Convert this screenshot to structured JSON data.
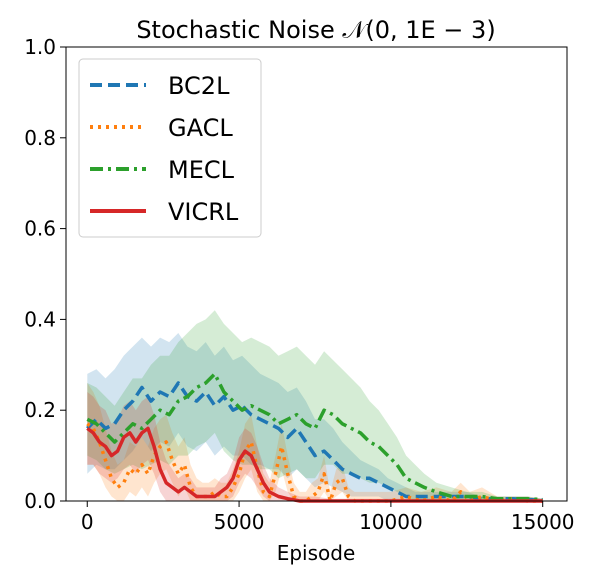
{
  "chart_data": {
    "type": "line",
    "title": "Stochastic Noise 𝒩(0, 1E − 3)",
    "xlabel": "Episode",
    "ylabel": "",
    "xlim": [
      -700,
      15800
    ],
    "ylim": [
      0,
      1.0
    ],
    "xticks": [
      0,
      5000,
      10000,
      15000
    ],
    "xtick_labels": [
      "0",
      "5000",
      "10000",
      "15000"
    ],
    "yticks": [
      0.0,
      0.2,
      0.4,
      0.6,
      0.8,
      1.0
    ],
    "ytick_labels": [
      "0.0",
      "0.2",
      "0.4",
      "0.6",
      "0.8",
      "1.0"
    ],
    "legend_position": "top-left",
    "series": [
      {
        "name": "BC2L",
        "color": "#1f77b4",
        "dash": "dashed",
        "x": [
          0,
          300,
          600,
          900,
          1200,
          1500,
          1800,
          2100,
          2400,
          2700,
          3000,
          3300,
          3600,
          3900,
          4200,
          4500,
          4800,
          5100,
          5400,
          5700,
          6000,
          6300,
          6600,
          6900,
          7200,
          7500,
          7800,
          8100,
          8400,
          8700,
          9000,
          9300,
          9600,
          9900,
          10200,
          10500,
          10800,
          11100,
          11500,
          12000,
          12500,
          13000,
          13500,
          14000,
          14500,
          15000
        ],
        "y": [
          0.16,
          0.18,
          0.16,
          0.17,
          0.2,
          0.22,
          0.25,
          0.22,
          0.24,
          0.23,
          0.26,
          0.23,
          0.22,
          0.24,
          0.21,
          0.23,
          0.2,
          0.21,
          0.19,
          0.18,
          0.17,
          0.16,
          0.14,
          0.16,
          0.13,
          0.1,
          0.11,
          0.09,
          0.07,
          0.06,
          0.05,
          0.05,
          0.04,
          0.03,
          0.02,
          0.01,
          0.01,
          0.01,
          0.01,
          0.01,
          0.01,
          0.005,
          0.005,
          0.005,
          0.003,
          0.002
        ],
        "band_upper": [
          0.28,
          0.29,
          0.27,
          0.29,
          0.32,
          0.34,
          0.36,
          0.34,
          0.36,
          0.35,
          0.37,
          0.34,
          0.33,
          0.35,
          0.32,
          0.34,
          0.31,
          0.32,
          0.3,
          0.28,
          0.27,
          0.26,
          0.24,
          0.25,
          0.22,
          0.18,
          0.18,
          0.16,
          0.13,
          0.11,
          0.09,
          0.08,
          0.07,
          0.05,
          0.04,
          0.03,
          0.02,
          0.02,
          0.02,
          0.02,
          0.02,
          0.01,
          0.01,
          0.01,
          0.01,
          0.005
        ],
        "band_lower": [
          0.06,
          0.08,
          0.07,
          0.07,
          0.09,
          0.11,
          0.14,
          0.11,
          0.13,
          0.12,
          0.15,
          0.12,
          0.11,
          0.13,
          0.1,
          0.12,
          0.1,
          0.1,
          0.08,
          0.08,
          0.07,
          0.07,
          0.05,
          0.07,
          0.05,
          0.03,
          0.04,
          0.03,
          0.02,
          0.01,
          0.01,
          0.01,
          0.01,
          0.0,
          0.0,
          0.0,
          0.0,
          0.0,
          0.0,
          0.0,
          0.0,
          0.0,
          0.0,
          0.0,
          0.0,
          0.0
        ]
      },
      {
        "name": "GACL",
        "color": "#ff7f0e",
        "dash": "dotted",
        "x": [
          0,
          200,
          400,
          600,
          800,
          1000,
          1200,
          1400,
          1600,
          1800,
          2000,
          2200,
          2400,
          2600,
          2800,
          3000,
          3200,
          3400,
          3600,
          3800,
          4000,
          4200,
          4400,
          4600,
          4800,
          5000,
          5200,
          5400,
          5600,
          5800,
          6000,
          6200,
          6400,
          6600,
          6800,
          7000,
          7200,
          7400,
          7600,
          7800,
          8000,
          8200,
          8400,
          8600,
          8800,
          9000,
          9500,
          10000,
          10500,
          11000,
          11500,
          12000,
          12300,
          12600,
          13000,
          13500,
          14000,
          14500,
          15000
        ],
        "y": [
          0.17,
          0.16,
          0.13,
          0.09,
          0.05,
          0.03,
          0.04,
          0.07,
          0.06,
          0.08,
          0.06,
          0.1,
          0.12,
          0.13,
          0.09,
          0.06,
          0.08,
          0.03,
          0.01,
          0.01,
          0.01,
          0.02,
          0.01,
          0.01,
          0.03,
          0.06,
          0.11,
          0.13,
          0.07,
          0.02,
          0.01,
          0.06,
          0.12,
          0.06,
          0.01,
          0.0,
          0.0,
          0.01,
          0.02,
          0.06,
          0.0,
          0.04,
          0.05,
          0.01,
          0.0,
          0.0,
          0.0,
          0.0,
          0.01,
          0.0,
          0.01,
          0.0,
          0.02,
          0.0,
          0.01,
          0.0,
          0.005,
          0.0,
          0.0
        ],
        "band_upper": [
          0.26,
          0.24,
          0.21,
          0.16,
          0.11,
          0.08,
          0.09,
          0.13,
          0.12,
          0.14,
          0.12,
          0.16,
          0.18,
          0.19,
          0.15,
          0.12,
          0.14,
          0.08,
          0.05,
          0.04,
          0.04,
          0.05,
          0.04,
          0.04,
          0.07,
          0.11,
          0.17,
          0.19,
          0.12,
          0.06,
          0.04,
          0.1,
          0.17,
          0.1,
          0.04,
          0.02,
          0.02,
          0.04,
          0.05,
          0.1,
          0.02,
          0.07,
          0.08,
          0.03,
          0.02,
          0.02,
          0.02,
          0.02,
          0.03,
          0.02,
          0.03,
          0.02,
          0.04,
          0.02,
          0.03,
          0.01,
          0.01,
          0.01,
          0.005
        ],
        "band_lower": [
          0.08,
          0.08,
          0.06,
          0.03,
          0.01,
          0.0,
          0.0,
          0.02,
          0.01,
          0.03,
          0.01,
          0.04,
          0.06,
          0.07,
          0.04,
          0.01,
          0.03,
          0.0,
          0.0,
          0.0,
          0.0,
          0.0,
          0.0,
          0.0,
          0.0,
          0.02,
          0.05,
          0.07,
          0.02,
          0.0,
          0.0,
          0.02,
          0.07,
          0.02,
          0.0,
          0.0,
          0.0,
          0.0,
          0.0,
          0.02,
          0.0,
          0.01,
          0.02,
          0.0,
          0.0,
          0.0,
          0.0,
          0.0,
          0.0,
          0.0,
          0.0,
          0.0,
          0.0,
          0.0,
          0.0,
          0.0,
          0.0,
          0.0,
          0.0
        ]
      },
      {
        "name": "MECL",
        "color": "#2ca02c",
        "dash": "dashdot",
        "x": [
          0,
          300,
          600,
          900,
          1200,
          1500,
          1800,
          2100,
          2400,
          2700,
          3000,
          3300,
          3600,
          3900,
          4200,
          4500,
          4800,
          5100,
          5400,
          5700,
          6000,
          6300,
          6600,
          6900,
          7200,
          7500,
          7800,
          8100,
          8400,
          8700,
          9000,
          9300,
          9600,
          9900,
          10200,
          10500,
          10800,
          11100,
          11500,
          12000,
          12500,
          13000,
          13500,
          14000,
          14500,
          15000
        ],
        "y": [
          0.18,
          0.17,
          0.15,
          0.13,
          0.15,
          0.17,
          0.16,
          0.18,
          0.2,
          0.19,
          0.22,
          0.23,
          0.25,
          0.26,
          0.28,
          0.24,
          0.22,
          0.2,
          0.21,
          0.2,
          0.19,
          0.17,
          0.18,
          0.19,
          0.17,
          0.16,
          0.2,
          0.19,
          0.17,
          0.16,
          0.15,
          0.13,
          0.12,
          0.1,
          0.08,
          0.05,
          0.04,
          0.03,
          0.02,
          0.01,
          0.01,
          0.01,
          0.005,
          0.005,
          0.005,
          0.003
        ],
        "band_upper": [
          0.26,
          0.25,
          0.23,
          0.21,
          0.24,
          0.27,
          0.27,
          0.3,
          0.32,
          0.32,
          0.35,
          0.37,
          0.39,
          0.4,
          0.42,
          0.39,
          0.37,
          0.35,
          0.36,
          0.35,
          0.34,
          0.32,
          0.33,
          0.34,
          0.32,
          0.3,
          0.33,
          0.31,
          0.29,
          0.27,
          0.25,
          0.22,
          0.2,
          0.17,
          0.14,
          0.1,
          0.08,
          0.06,
          0.04,
          0.03,
          0.02,
          0.02,
          0.01,
          0.01,
          0.01,
          0.005
        ],
        "band_lower": [
          0.1,
          0.09,
          0.07,
          0.06,
          0.07,
          0.08,
          0.07,
          0.08,
          0.09,
          0.08,
          0.1,
          0.1,
          0.12,
          0.13,
          0.15,
          0.11,
          0.09,
          0.08,
          0.08,
          0.07,
          0.07,
          0.05,
          0.06,
          0.07,
          0.05,
          0.05,
          0.08,
          0.08,
          0.06,
          0.06,
          0.05,
          0.04,
          0.04,
          0.03,
          0.02,
          0.01,
          0.0,
          0.0,
          0.0,
          0.0,
          0.0,
          0.0,
          0.0,
          0.0,
          0.0,
          0.0
        ]
      },
      {
        "name": "VICRL",
        "color": "#d62728",
        "dash": "solid",
        "x": [
          0,
          200,
          400,
          600,
          800,
          1000,
          1200,
          1400,
          1600,
          1800,
          2000,
          2200,
          2400,
          2600,
          2800,
          3000,
          3200,
          3400,
          3600,
          3800,
          4000,
          4200,
          4400,
          4600,
          4800,
          5000,
          5200,
          5400,
          5600,
          5800,
          6000,
          6300,
          6600,
          7000,
          7500,
          8000,
          8500,
          9000,
          9500,
          10000,
          10500,
          11000,
          11500,
          12000,
          12500,
          13000,
          13500,
          14000,
          14500,
          15000
        ],
        "y": [
          0.16,
          0.15,
          0.13,
          0.12,
          0.1,
          0.11,
          0.14,
          0.15,
          0.13,
          0.15,
          0.16,
          0.12,
          0.07,
          0.04,
          0.03,
          0.02,
          0.03,
          0.02,
          0.01,
          0.01,
          0.01,
          0.01,
          0.02,
          0.03,
          0.05,
          0.09,
          0.11,
          0.1,
          0.07,
          0.04,
          0.02,
          0.01,
          0.005,
          0.0,
          0.0,
          0.0,
          0.0,
          0.0,
          0.0,
          0.0,
          0.0,
          0.0,
          0.0,
          0.0,
          0.0,
          0.0,
          0.0,
          0.0,
          0.0,
          0.0
        ],
        "band_upper": [
          0.24,
          0.23,
          0.21,
          0.2,
          0.17,
          0.18,
          0.21,
          0.22,
          0.2,
          0.22,
          0.23,
          0.19,
          0.13,
          0.09,
          0.07,
          0.05,
          0.06,
          0.05,
          0.03,
          0.03,
          0.03,
          0.03,
          0.05,
          0.06,
          0.09,
          0.14,
          0.16,
          0.15,
          0.12,
          0.08,
          0.05,
          0.03,
          0.02,
          0.01,
          0.01,
          0.005,
          0.005,
          0.005,
          0.005,
          0.005,
          0.005,
          0.005,
          0.005,
          0.005,
          0.005,
          0.005,
          0.005,
          0.005,
          0.005,
          0.005
        ],
        "band_lower": [
          0.08,
          0.08,
          0.06,
          0.05,
          0.04,
          0.05,
          0.07,
          0.08,
          0.06,
          0.08,
          0.09,
          0.06,
          0.02,
          0.0,
          0.0,
          0.0,
          0.0,
          0.0,
          0.0,
          0.0,
          0.0,
          0.0,
          0.0,
          0.0,
          0.01,
          0.04,
          0.06,
          0.05,
          0.03,
          0.01,
          0.0,
          0.0,
          0.0,
          0.0,
          0.0,
          0.0,
          0.0,
          0.0,
          0.0,
          0.0,
          0.0,
          0.0,
          0.0,
          0.0,
          0.0,
          0.0,
          0.0,
          0.0,
          0.0,
          0.0
        ]
      }
    ]
  }
}
